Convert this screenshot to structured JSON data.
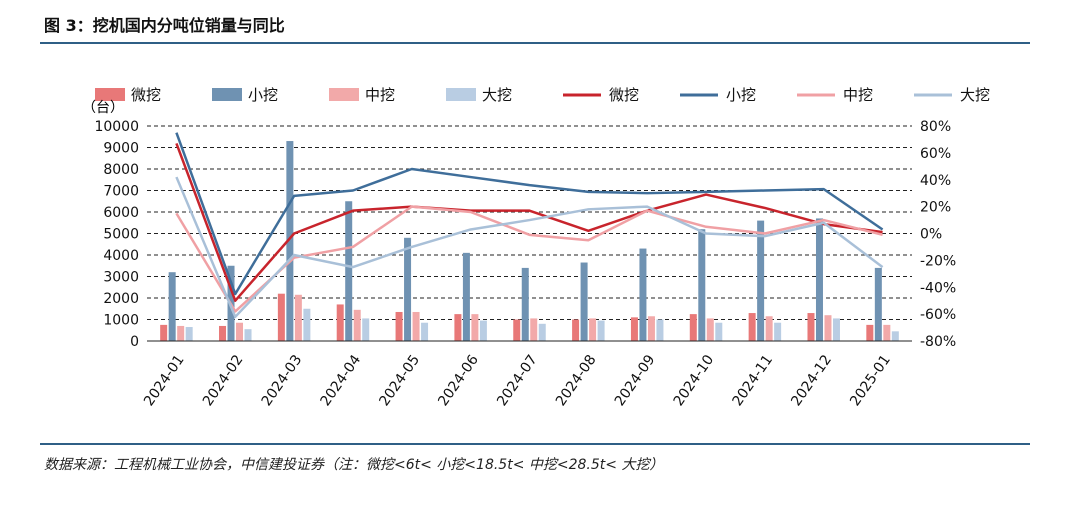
{
  "header": {
    "title": "图 3：挖机国内分吨位销量与同比"
  },
  "footer": {
    "source": "数据来源：工程机械工业协会，中信建投证券（注：微挖<6t< 小挖<18.5t< 中挖<28.5t< 大挖）"
  },
  "chart_data": {
    "type": "bar+line",
    "categories": [
      "2024-01",
      "2024-02",
      "2024-03",
      "2024-04",
      "2024-05",
      "2024-06",
      "2024-07",
      "2024-08",
      "2024-09",
      "2024-10",
      "2024-11",
      "2024-12",
      "2025-01"
    ],
    "y_left": {
      "unit_label": "（台）",
      "ylim": [
        0,
        10000
      ],
      "ticks": [
        0,
        1000,
        2000,
        3000,
        4000,
        5000,
        6000,
        7000,
        8000,
        9000,
        10000
      ]
    },
    "y_right": {
      "ylim": [
        -80,
        80
      ],
      "ticks": [
        "80%",
        "60%",
        "40%",
        "20%",
        "0%",
        "-20%",
        "-40%",
        "-60%",
        "-80%"
      ]
    },
    "bar_series": [
      {
        "name": "微挖",
        "color": "#e87878",
        "values": [
          750,
          700,
          2200,
          1700,
          1350,
          1250,
          1000,
          1000,
          1100,
          1250,
          1300,
          1300,
          750
        ]
      },
      {
        "name": "小挖",
        "color": "#6f92b2",
        "values": [
          3200,
          3500,
          9300,
          6500,
          4800,
          4100,
          3400,
          3650,
          4300,
          5200,
          5600,
          5700,
          3400
        ]
      },
      {
        "name": "中挖",
        "color": "#f2a9a9",
        "values": [
          700,
          850,
          2150,
          1450,
          1350,
          1250,
          1050,
          1050,
          1150,
          1050,
          1150,
          1200,
          750
        ]
      },
      {
        "name": "大挖",
        "color": "#b9cde3",
        "values": [
          650,
          550,
          1500,
          1050,
          850,
          950,
          800,
          950,
          1000,
          850,
          850,
          1050,
          450
        ]
      }
    ],
    "line_series": [
      {
        "name": "微挖",
        "color": "#c8242c",
        "values": [
          67,
          -50,
          0,
          17,
          20,
          17,
          17,
          2,
          17,
          29,
          19,
          7,
          1
        ]
      },
      {
        "name": "小挖",
        "color": "#3f6e9a",
        "values": [
          75,
          -45,
          28,
          32,
          48,
          42,
          36,
          31,
          30,
          31,
          32,
          33,
          3
        ]
      },
      {
        "name": "中挖",
        "color": "#f0a0a4",
        "values": [
          15,
          -58,
          -18,
          -10,
          20,
          16,
          -1,
          -5,
          17,
          5,
          0,
          10,
          -1
        ]
      },
      {
        "name": "大挖",
        "color": "#a9c0d8",
        "values": [
          42,
          -62,
          -16,
          -25,
          -10,
          3,
          10,
          18,
          20,
          0,
          -2,
          8,
          -25
        ]
      }
    ],
    "legend_position": "top",
    "grid": true
  }
}
